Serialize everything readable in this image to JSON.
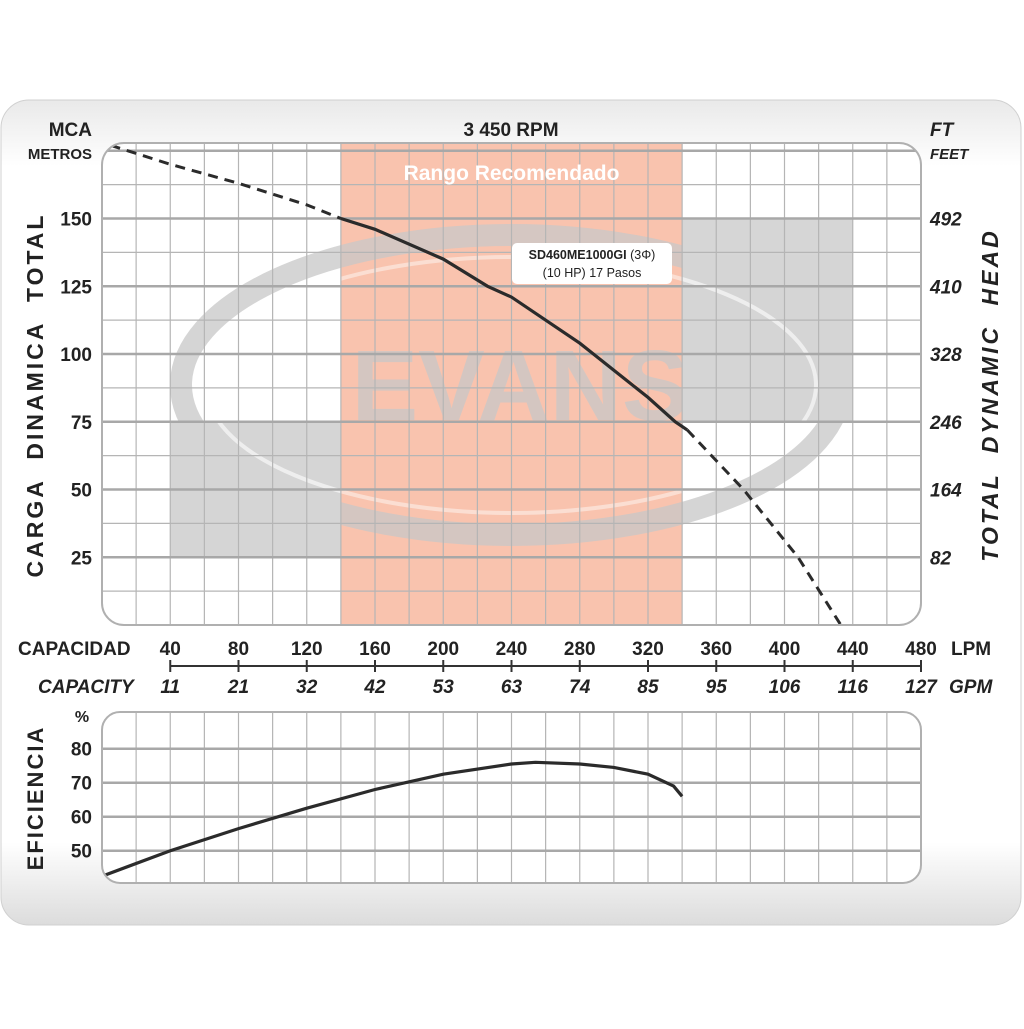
{
  "chart_data": [
    {
      "type": "line",
      "title": "3 450 RPM",
      "ylabel": "CARGA DINAMICA TOTAL",
      "ylabel_right": "TOTAL DYNAMIC HEAD",
      "y_unit_top": "MCA",
      "y_unit_sub": "METROS",
      "y_unit_right_top": "FT",
      "y_unit_right_sub": "FEET",
      "xlim": [
        0,
        480
      ],
      "ylim": [
        0,
        178
      ],
      "yticks": [
        25,
        50,
        75,
        100,
        125,
        150
      ],
      "yticks_right": [
        "82",
        "164",
        "246",
        "328",
        "410",
        "492"
      ],
      "grid": true,
      "recommended_range": {
        "label": "Rango Recomendado",
        "from": 140,
        "to": 340,
        "color": "#f9c3ae"
      },
      "series": [
        {
          "name": "SD460ME1000GI (3Φ)",
          "label_line1_bold": "SD460ME1000GI",
          "label_line1_rest": " (3Φ)",
          "label_line2": "(10 HP) 17 Pasos",
          "x": [
            5,
            40,
            80,
            120,
            140,
            160,
            200,
            226,
            240,
            280,
            288,
            320,
            336,
            343,
            376,
            408,
            433
          ],
          "y": [
            177,
            170,
            163,
            155,
            150,
            146,
            135,
            125,
            121,
            104,
            100,
            84,
            75,
            72,
            50,
            25,
            0
          ],
          "solid_from": 140,
          "solid_to": 343
        }
      ]
    },
    {
      "type": "line",
      "ylabel": "EFICIENCIA",
      "y_unit": "%",
      "xlim": [
        0,
        480
      ],
      "ylim": [
        40.5,
        90
      ],
      "yticks": [
        50,
        60,
        70,
        80
      ],
      "grid": true,
      "series": [
        {
          "name": "Eficiencia",
          "x": [
            0,
            40,
            80,
            120,
            160,
            200,
            240,
            254,
            280,
            300,
            320,
            335,
            340
          ],
          "y": [
            42.5,
            50,
            56.5,
            62.5,
            68,
            72.5,
            75.5,
            76,
            75.5,
            74.5,
            72.5,
            69,
            66
          ]
        }
      ]
    }
  ],
  "x_axis": {
    "label_lpm": "CAPACIDAD",
    "label_gpm": "CAPACITY",
    "unit_lpm": "LPM",
    "unit_gpm": "GPM",
    "lpm": [
      "40",
      "80",
      "120",
      "160",
      "200",
      "240",
      "280",
      "320",
      "360",
      "400",
      "440",
      "480"
    ],
    "gpm": [
      "11",
      "21",
      "32",
      "42",
      "53",
      "63",
      "74",
      "85",
      "95",
      "106",
      "116",
      "127"
    ]
  },
  "watermark": {
    "text": "EVANS",
    "mark": "®"
  },
  "colors": {
    "curve": "#2b2b2b",
    "grid": "#b5b5b5",
    "watermark": "#c8c8c8",
    "range": "#f9c3ae"
  }
}
